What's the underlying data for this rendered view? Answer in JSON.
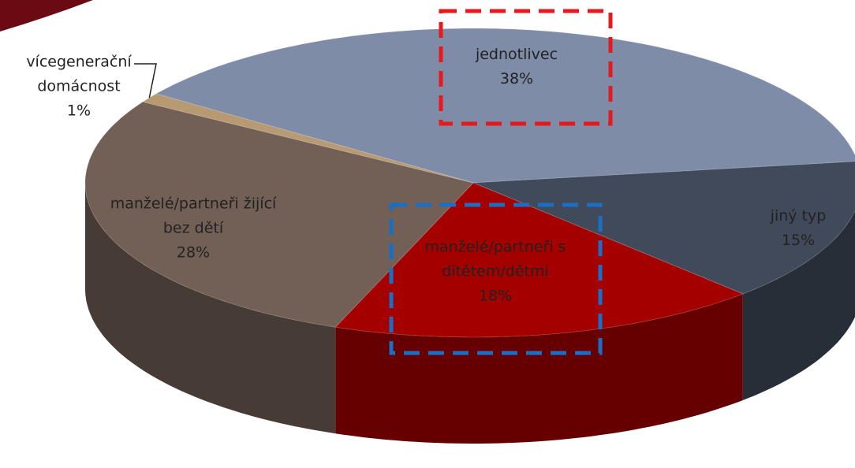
{
  "chart_data": {
    "type": "pie3d",
    "categories": [
      "jednotlivec",
      "jiný typ",
      "manželé/partneři s dítětem/dětmi",
      "manželé/partneři žijící bez dětí",
      "vícegenerační domácnost"
    ],
    "values": [
      38,
      15,
      18,
      28,
      1
    ],
    "value_labels": [
      "38%",
      "15%",
      "18%",
      "28%",
      "1%"
    ],
    "colors": [
      "#7f8ca8",
      "#404a5a",
      "#a50000",
      "#725f55",
      "#b89a72"
    ]
  }
}
